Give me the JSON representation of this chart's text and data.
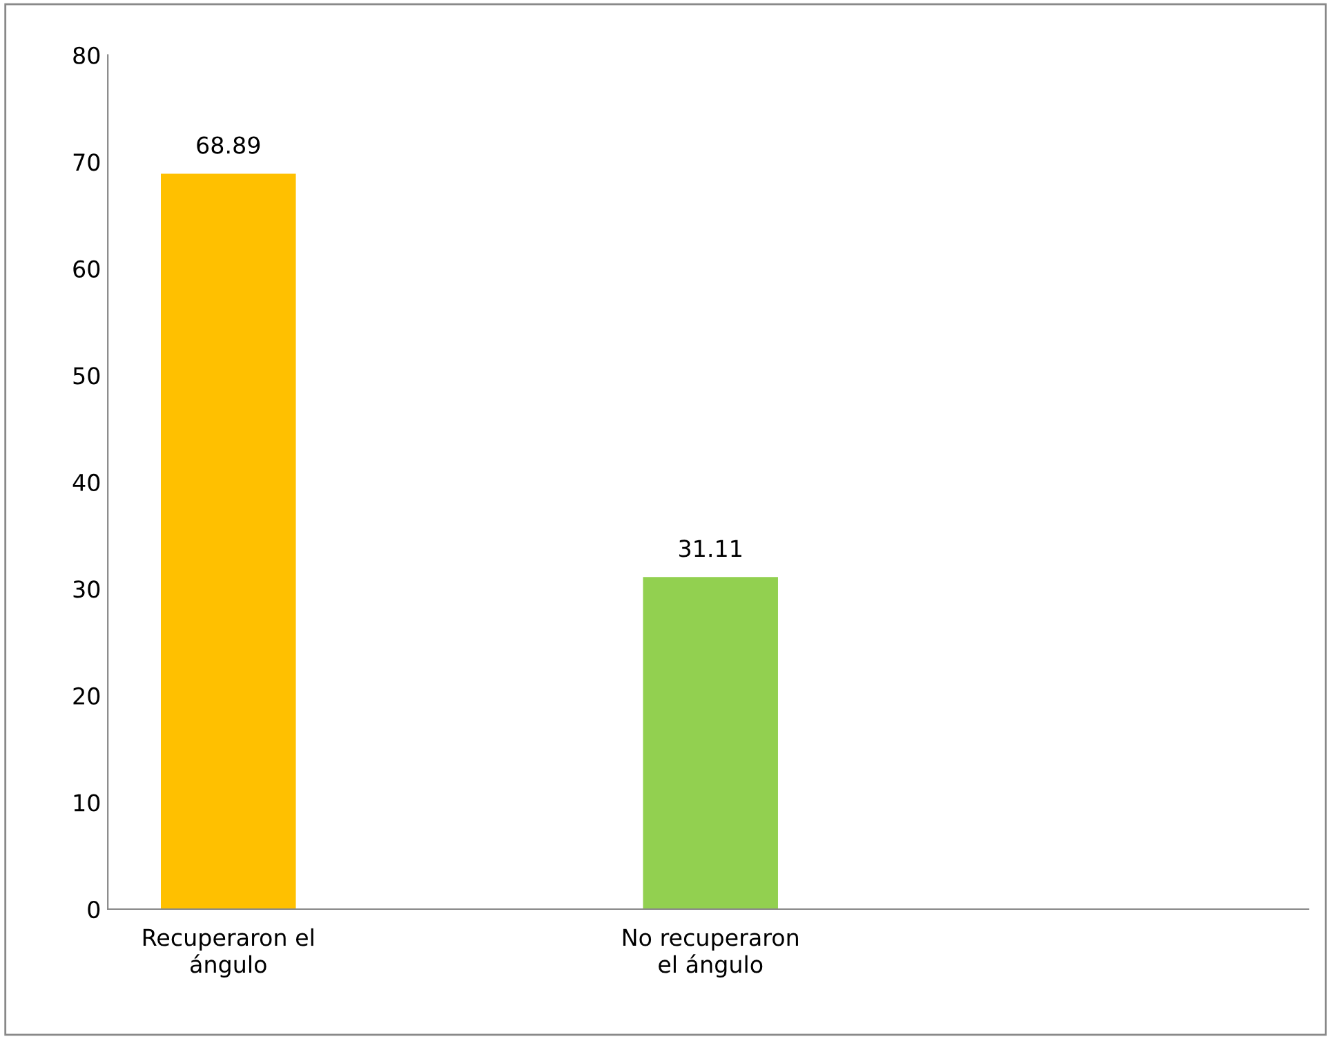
{
  "chart_data": {
    "type": "bar",
    "categories": [
      "Recuperaron el\nángulo",
      "No recuperaron\nel ángulo",
      null
    ],
    "values": [
      68.89,
      31.11,
      null
    ],
    "colors": [
      "#ffc000",
      "#92d050",
      "#92d050"
    ],
    "ylim": [
      0,
      80
    ],
    "yticks": [
      0,
      10,
      20,
      30,
      40,
      50,
      60,
      70,
      80
    ],
    "data_labels": true,
    "grid": false,
    "legend": false
  }
}
